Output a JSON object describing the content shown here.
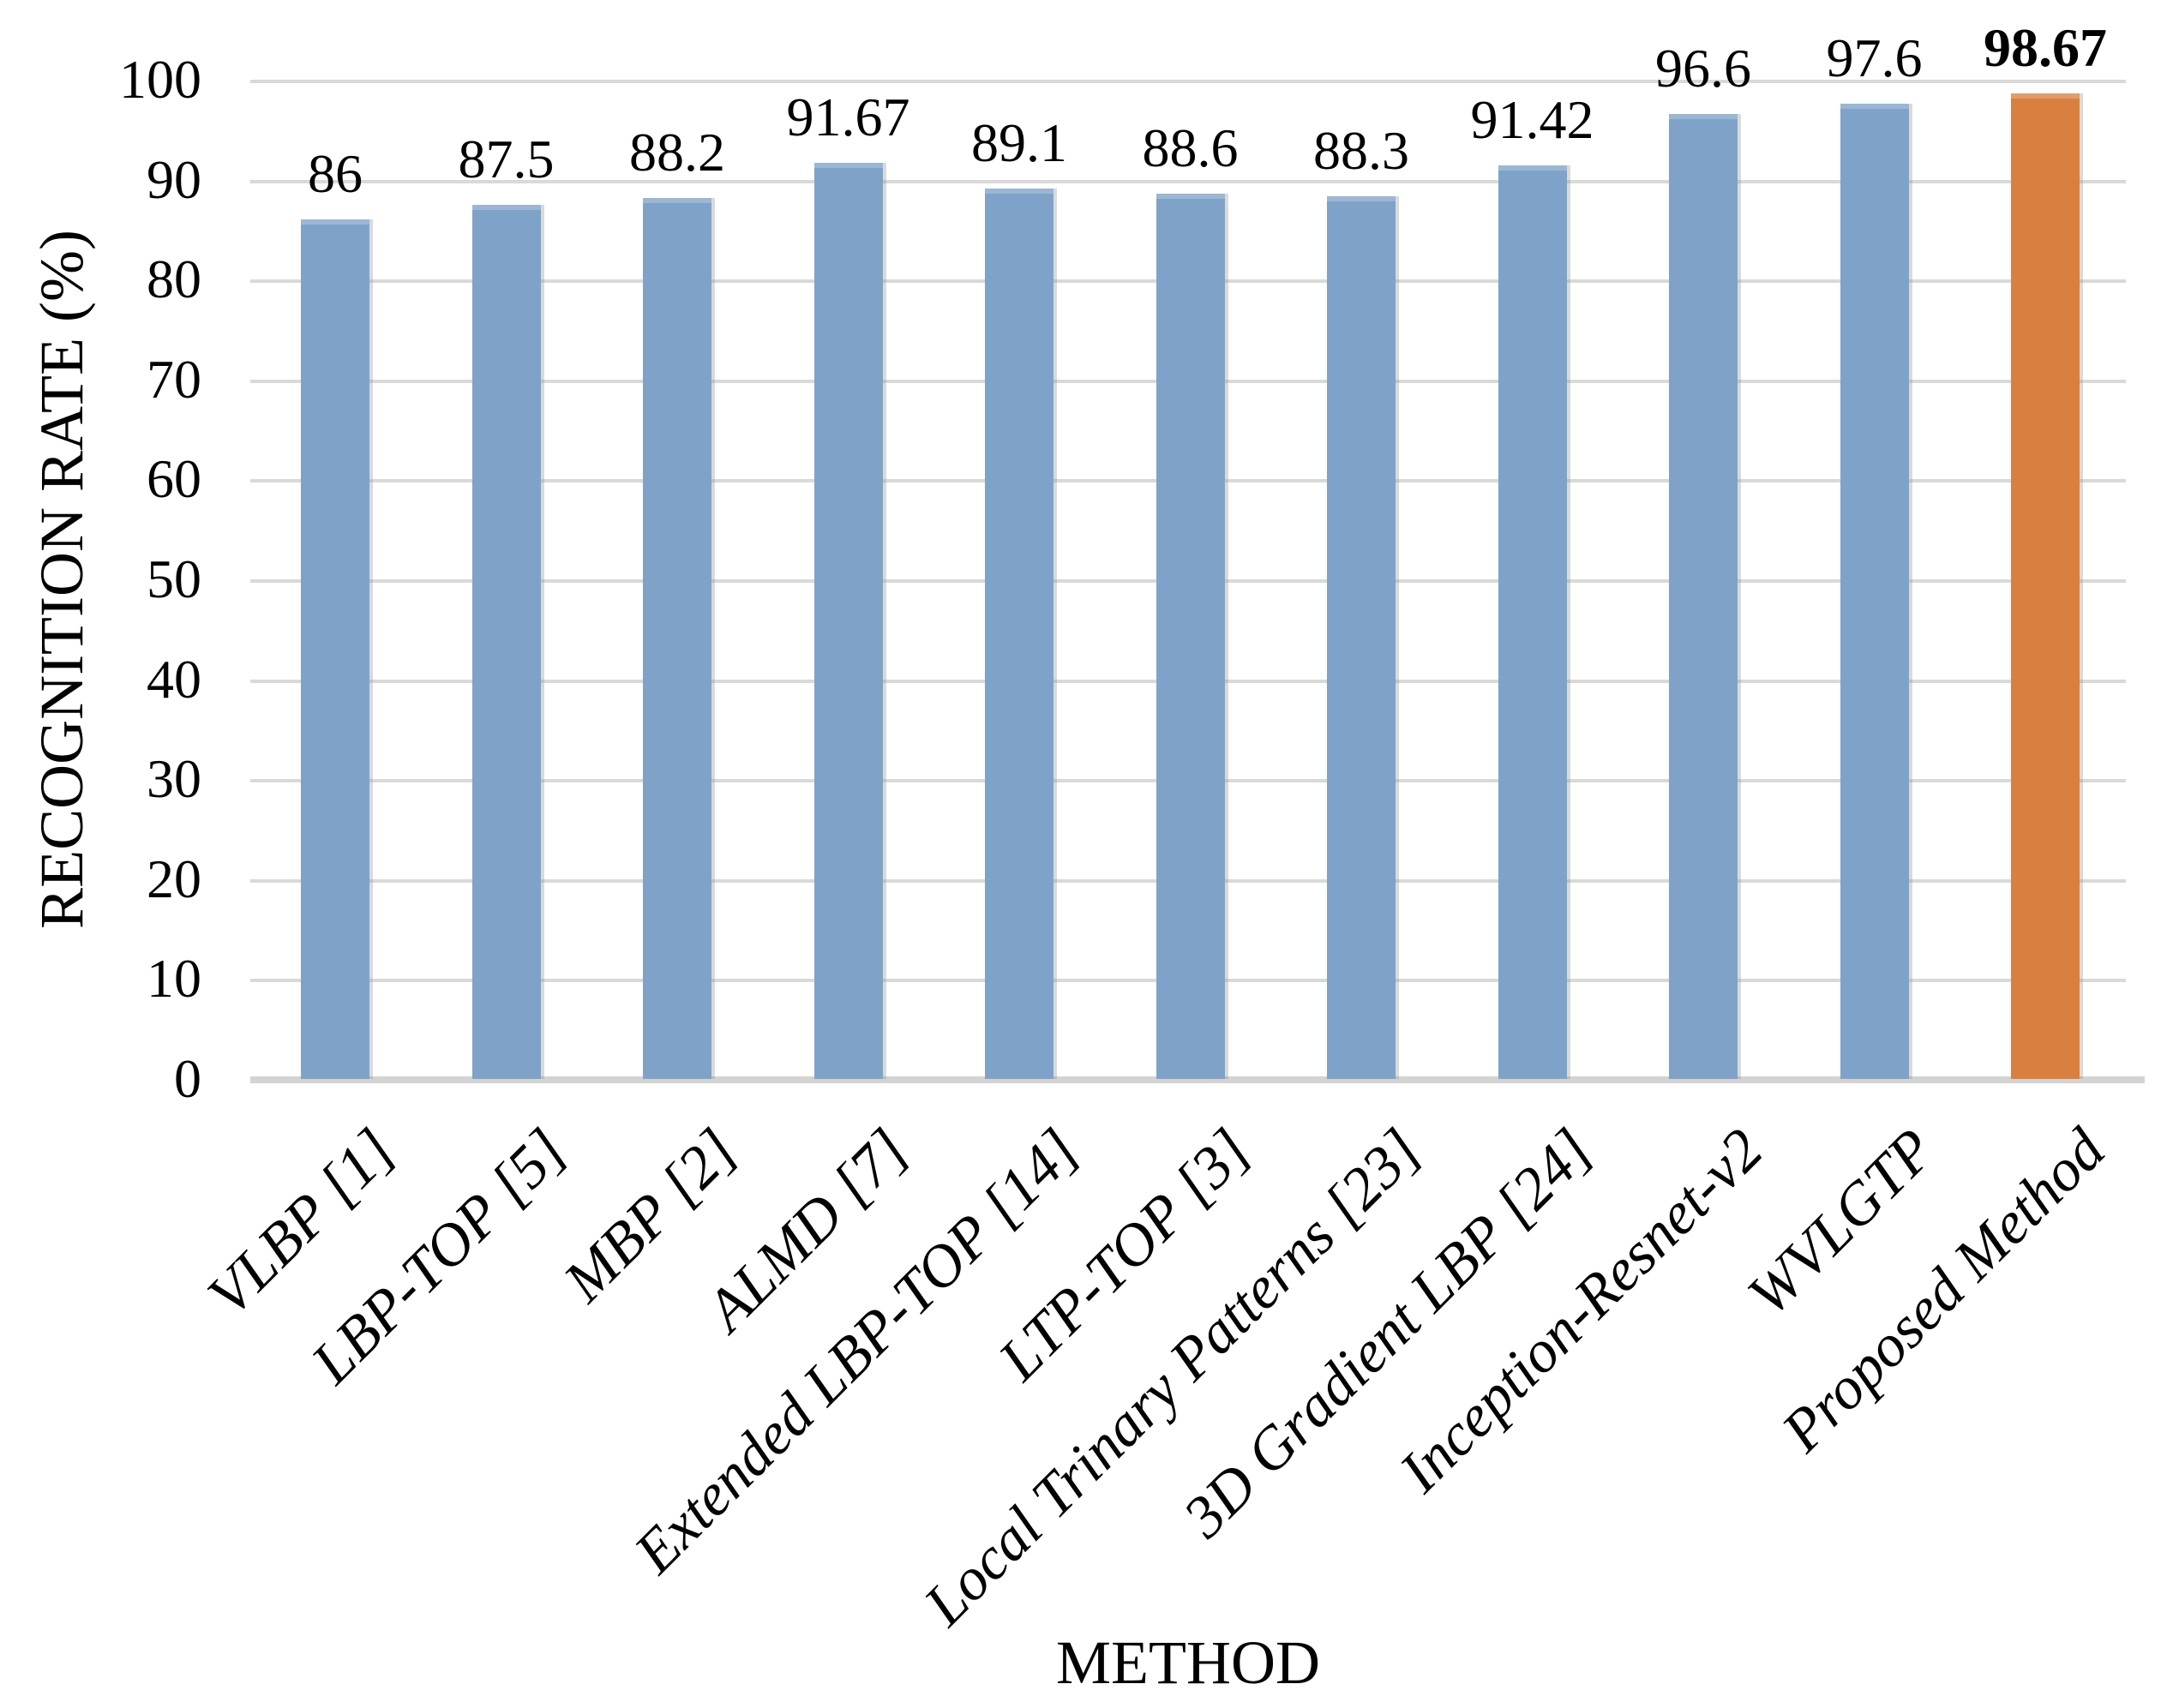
{
  "chart_data": {
    "type": "bar",
    "title": "",
    "xlabel": "METHOD",
    "ylabel": "RECOGNITION RATE (%)",
    "ylim": [
      0,
      100
    ],
    "ytick_step": 10,
    "y_ticks": [
      0,
      10,
      20,
      30,
      40,
      50,
      60,
      70,
      80,
      90,
      100
    ],
    "grid": "horizontal",
    "legend": "none",
    "categories": [
      "VLBP [1]",
      "LBP-TOP [5]",
      "MBP [2]",
      "ALMD [7]",
      "Extended LBP-TOP [14]",
      "LTP-TOP [3]",
      "Local Trinary Patterns [23]",
      "3D Gradient LBP [24]",
      "Inception-Resnet-v2",
      "WVLGTP",
      "Proposed Method"
    ],
    "values": [
      86,
      87.5,
      88.2,
      91.67,
      89.1,
      88.6,
      88.3,
      91.42,
      96.6,
      97.6,
      98.67
    ],
    "value_labels": [
      "86",
      "87.5",
      "88.2",
      "91.67",
      "89.1",
      "88.6",
      "88.3",
      "91.42",
      "96.6",
      "97.6",
      "98.67"
    ],
    "highlight_index": 10,
    "colors": {
      "bar": "#7FA3C8",
      "highlight": "#D98040",
      "gridline": "#D9D9D9",
      "axis_line": "#D3D3D3",
      "text": "#000000"
    }
  }
}
